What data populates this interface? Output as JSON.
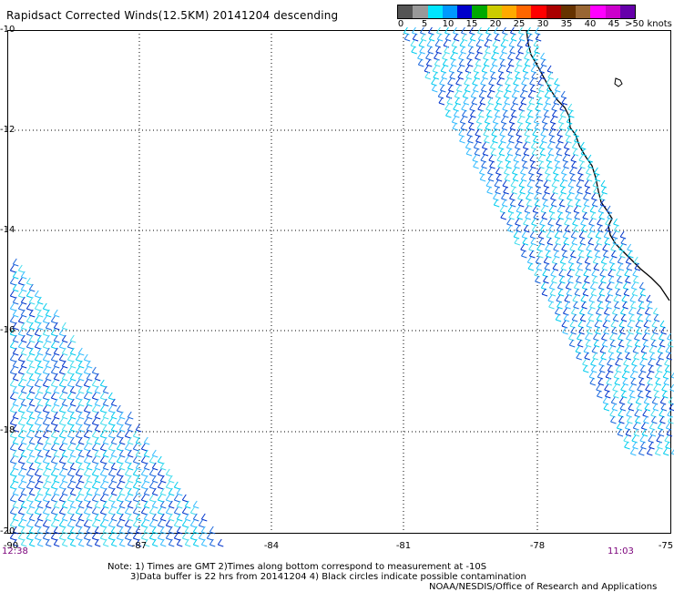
{
  "title": "Rapidsact Corrected Winds(12.5KM) 20141204 descending",
  "legend": {
    "colors": [
      "#555555",
      "#999999",
      "#00e6ff",
      "#0099ff",
      "#0000cc",
      "#00aa00",
      "#cccc00",
      "#ffaa00",
      "#ff6600",
      "#ff0000",
      "#aa0000",
      "#663300",
      "#996633",
      "#ff00ff",
      "#cc00cc",
      "#6600aa"
    ],
    "labels": [
      "0",
      "5",
      "10",
      "15",
      "20",
      "25",
      "30",
      "35",
      "40",
      "45",
      ">50 knots"
    ]
  },
  "y_ticks": [
    "-10",
    "-12",
    "-14",
    "-16",
    "-18",
    "-20"
  ],
  "x_ticks": [
    "-90",
    "-87",
    "-84",
    "-81",
    "-78",
    "-75"
  ],
  "time_left": "12:38",
  "time_right": "11:03",
  "notes": {
    "line1": "Note: 1) Times are GMT 2)Times along bottom correspond to measurement at -10S",
    "line2": "3)Data buffer is 22 hrs from 20141204 4) Black circles indicate possible contamination",
    "line3": "NOAA/NESDIS/Office of Research and Applications"
  }
}
